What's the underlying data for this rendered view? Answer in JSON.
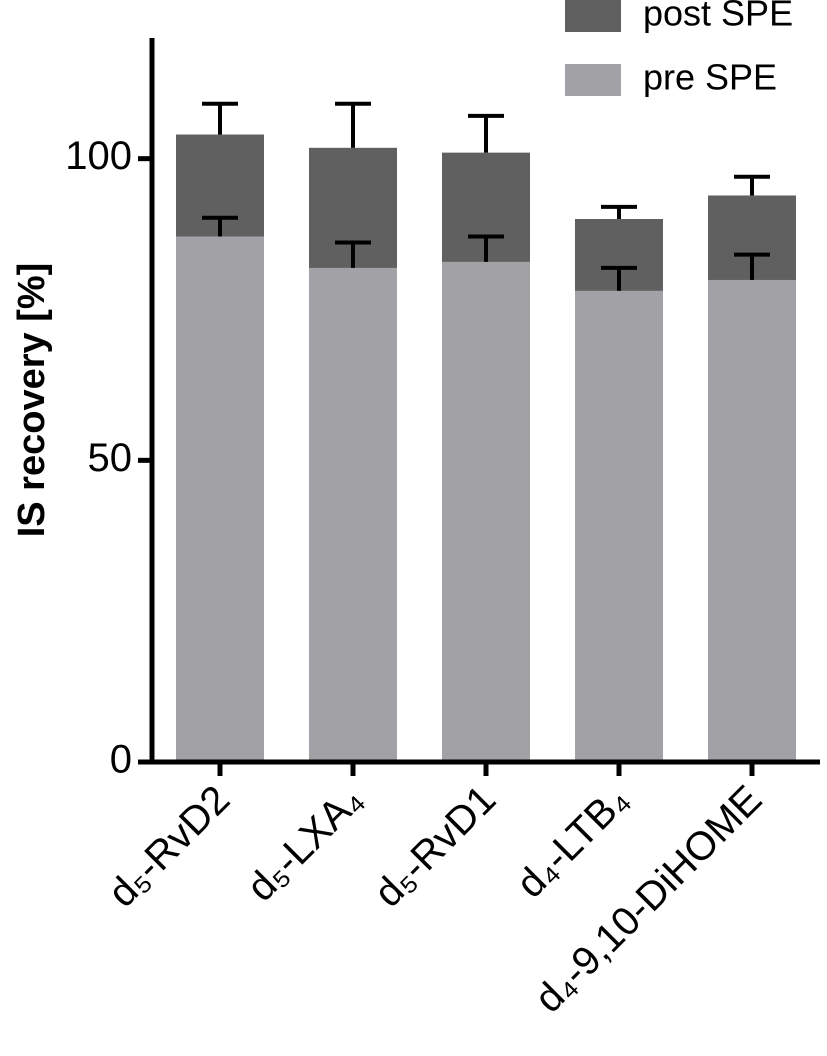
{
  "chart_data": {
    "type": "overlaid-bar",
    "y_label": "IS recovery [%]",
    "categories": [
      "d₅-RvD2",
      "d₅-LXA₄",
      "d₅-RvD1",
      "d₄-LTB₄",
      "d₄-9,10-DiHOME"
    ],
    "series": [
      {
        "name": "post SPE",
        "color": "#606060",
        "values": [
          104.0,
          101.8,
          101.0,
          90.0,
          93.9
        ],
        "errors": [
          5.1,
          7.3,
          6.1,
          2.0,
          3.1
        ]
      },
      {
        "name": "pre SPE",
        "color": "#a2a1a5",
        "values": [
          87.1,
          81.9,
          82.9,
          78.1,
          79.9
        ],
        "errors": [
          3.1,
          4.2,
          4.2,
          3.8,
          4.2
        ]
      }
    ],
    "ylim": [
      0,
      120
    ],
    "yticks": [
      0,
      50,
      100
    ],
    "legend": "top-right"
  }
}
